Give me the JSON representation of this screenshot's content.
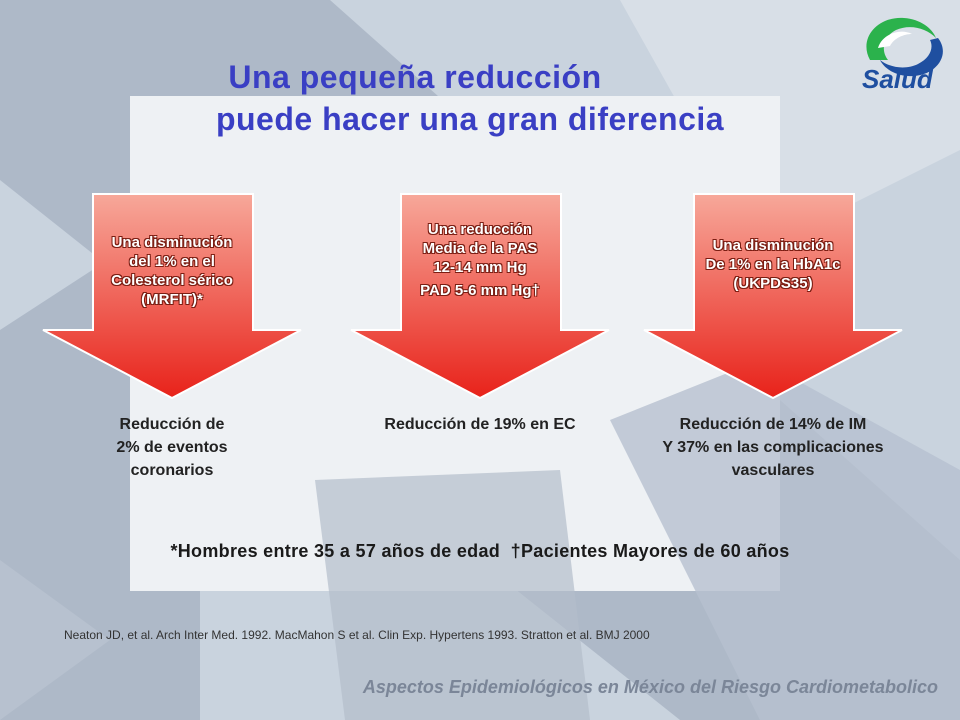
{
  "slide": {
    "title_lines": [
      "Una pequeña reducción",
      "puede hacer una gran diferencia"
    ],
    "logo_text": "Salud",
    "arrows": [
      {
        "lines": [
          "Una disminución",
          "del 1% en el",
          "Colesterol sérico",
          "(MRFIT)*"
        ],
        "result_lines": [
          "Reducción de",
          "2% de eventos",
          "coronarios"
        ]
      },
      {
        "lines": [
          "Una reducción",
          "Media de la PAS",
          "12-14 mm Hg",
          "PAD 5-6 mm Hg†"
        ],
        "result_lines": [
          "Reducción de 19% en EC"
        ]
      },
      {
        "lines": [
          "Una disminución",
          "De 1% en la HbA1c",
          "(UKPDS35)"
        ],
        "result_lines": [
          "Reducción de 14% de IM",
          "Y 37% en las complicaciones",
          "vasculares"
        ]
      }
    ],
    "footnote": "*Hombres entre 35 a 57 años de edad  †Pacientes Mayores de 60 años",
    "references": "Neaton JD, et al. Arch Inter Med. 1992. MacMahon S et al. Clin Exp. Hypertens 1993. Stratton et al. BMJ 2000",
    "tagline": "Aspectos Epidemiológicos en México del Riesgo Cardiometabolico"
  },
  "colors": {
    "title": "#3a3fc4",
    "arrow_top": "#f7a89a",
    "arrow_bottom": "#e8221a",
    "logo_green": "#2bb24c",
    "logo_blue": "#1f4fa0"
  }
}
